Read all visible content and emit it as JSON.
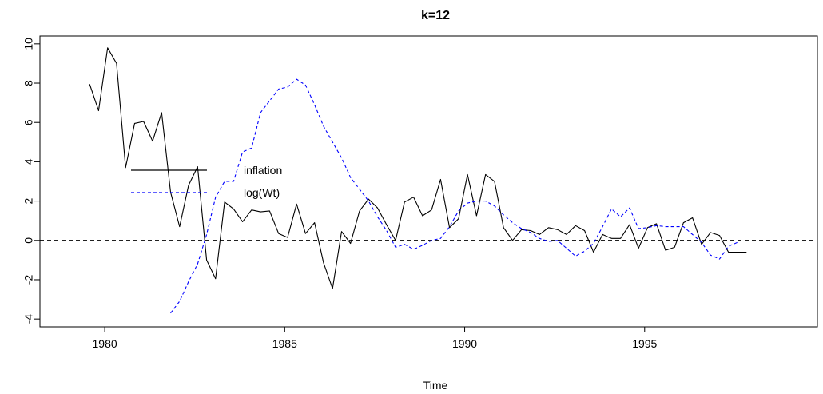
{
  "chart_data": {
    "type": "line",
    "title": "k=12",
    "xlabel": "Time",
    "ylabel": "",
    "xlim": [
      1978.2,
      1999.8
    ],
    "ylim": [
      -4.4,
      10.4
    ],
    "x_ticks": [
      1980,
      1985,
      1990,
      1995
    ],
    "x_tick_labels": [
      "1980",
      "1985",
      "1990",
      "1995"
    ],
    "y_ticks": [
      -4,
      -2,
      0,
      2,
      4,
      6,
      8,
      10
    ],
    "y_tick_labels": [
      "-4",
      "-2",
      "0",
      "2",
      "4",
      "6",
      "8",
      "10"
    ],
    "grid": false,
    "reference_line": {
      "y": 0,
      "style": "dashed",
      "color": "#000000"
    },
    "legend": {
      "placement": "center-left",
      "entries": [
        {
          "label": "inflation",
          "color": "#000000",
          "style": "solid"
        },
        {
          "label": "log(Wt)",
          "color": "#0000ff",
          "style": "dashed"
        }
      ]
    },
    "series": [
      {
        "name": "inflation",
        "color": "#000000",
        "style": "solid",
        "x": [
          1979.58,
          1979.83,
          1980.08,
          1980.33,
          1980.58,
          1980.83,
          1981.08,
          1981.33,
          1981.58,
          1981.83,
          1982.08,
          1982.33,
          1982.58,
          1982.83,
          1983.08,
          1983.33,
          1983.58,
          1983.83,
          1984.08,
          1984.33,
          1984.58,
          1984.83,
          1985.08,
          1985.33,
          1985.58,
          1985.83,
          1986.08,
          1986.33,
          1986.58,
          1986.83,
          1987.08,
          1987.33,
          1987.58,
          1987.83,
          1988.08,
          1988.33,
          1988.58,
          1988.83,
          1989.08,
          1989.33,
          1989.58,
          1989.83,
          1990.08,
          1990.33,
          1990.58,
          1990.83,
          1991.08,
          1991.33,
          1991.58,
          1991.83,
          1992.08,
          1992.33,
          1992.58,
          1992.83,
          1993.08,
          1993.33,
          1993.58,
          1993.83,
          1994.08,
          1994.33,
          1994.58,
          1994.83,
          1995.08,
          1995.33,
          1995.58,
          1995.83,
          1996.08,
          1996.33,
          1996.58,
          1996.83,
          1997.08,
          1997.33,
          1997.58,
          1997.83
        ],
        "values": [
          7.95,
          6.6,
          9.8,
          9.0,
          3.7,
          5.95,
          6.05,
          5.05,
          6.5,
          2.45,
          0.7,
          2.8,
          3.75,
          -1.0,
          -1.95,
          1.95,
          1.6,
          0.95,
          1.55,
          1.45,
          1.5,
          0.35,
          0.15,
          1.85,
          0.35,
          0.9,
          -1.15,
          -2.45,
          0.45,
          -0.15,
          1.5,
          2.1,
          1.65,
          0.8,
          0.0,
          1.95,
          2.2,
          1.25,
          1.55,
          3.1,
          0.65,
          1.1,
          3.35,
          1.25,
          3.35,
          3.0,
          0.65,
          0.0,
          0.55,
          0.5,
          0.3,
          0.65,
          0.55,
          0.3,
          0.75,
          0.5,
          -0.6,
          0.3,
          0.1,
          0.1,
          0.8,
          -0.4,
          0.65,
          0.85,
          -0.5,
          -0.35,
          0.9,
          1.15,
          -0.2,
          0.4,
          0.25,
          -0.6,
          -0.6,
          -0.6
        ]
      },
      {
        "name": "log(Wt)",
        "color": "#0000ff",
        "style": "dashed",
        "x": [
          1981.83,
          1982.08,
          1982.33,
          1982.58,
          1982.83,
          1983.08,
          1983.33,
          1983.58,
          1983.83,
          1984.08,
          1984.33,
          1984.58,
          1984.83,
          1985.08,
          1985.33,
          1985.58,
          1985.83,
          1986.08,
          1986.33,
          1986.58,
          1986.83,
          1987.08,
          1987.33,
          1987.58,
          1987.83,
          1988.08,
          1988.33,
          1988.58,
          1988.83,
          1989.08,
          1989.33,
          1989.58,
          1989.83,
          1990.08,
          1990.33,
          1990.58,
          1990.83,
          1991.08,
          1991.33,
          1991.58,
          1991.83,
          1992.08,
          1992.33,
          1992.58,
          1992.83,
          1993.08,
          1993.33,
          1993.58,
          1993.83,
          1994.08,
          1994.33,
          1994.58,
          1994.83,
          1995.08,
          1995.33,
          1995.58,
          1995.83,
          1996.08,
          1996.33,
          1996.58,
          1996.83,
          1997.08,
          1997.33,
          1997.58
        ],
        "values": [
          -3.7,
          -3.1,
          -2.1,
          -1.2,
          0.3,
          2.2,
          3.0,
          3.0,
          4.5,
          4.7,
          6.5,
          7.1,
          7.7,
          7.8,
          8.2,
          7.9,
          6.9,
          5.8,
          5.0,
          4.2,
          3.2,
          2.6,
          2.0,
          1.2,
          0.5,
          -0.35,
          -0.2,
          -0.45,
          -0.25,
          0.0,
          0.1,
          0.7,
          1.5,
          1.9,
          2.0,
          2.0,
          1.75,
          1.3,
          0.9,
          0.6,
          0.4,
          0.1,
          -0.05,
          0.0,
          -0.4,
          -0.8,
          -0.55,
          -0.15,
          0.7,
          1.6,
          1.2,
          1.65,
          0.6,
          0.65,
          0.75,
          0.7,
          0.7,
          0.7,
          0.3,
          -0.1,
          -0.75,
          -0.95,
          -0.3,
          -0.1
        ]
      }
    ]
  }
}
